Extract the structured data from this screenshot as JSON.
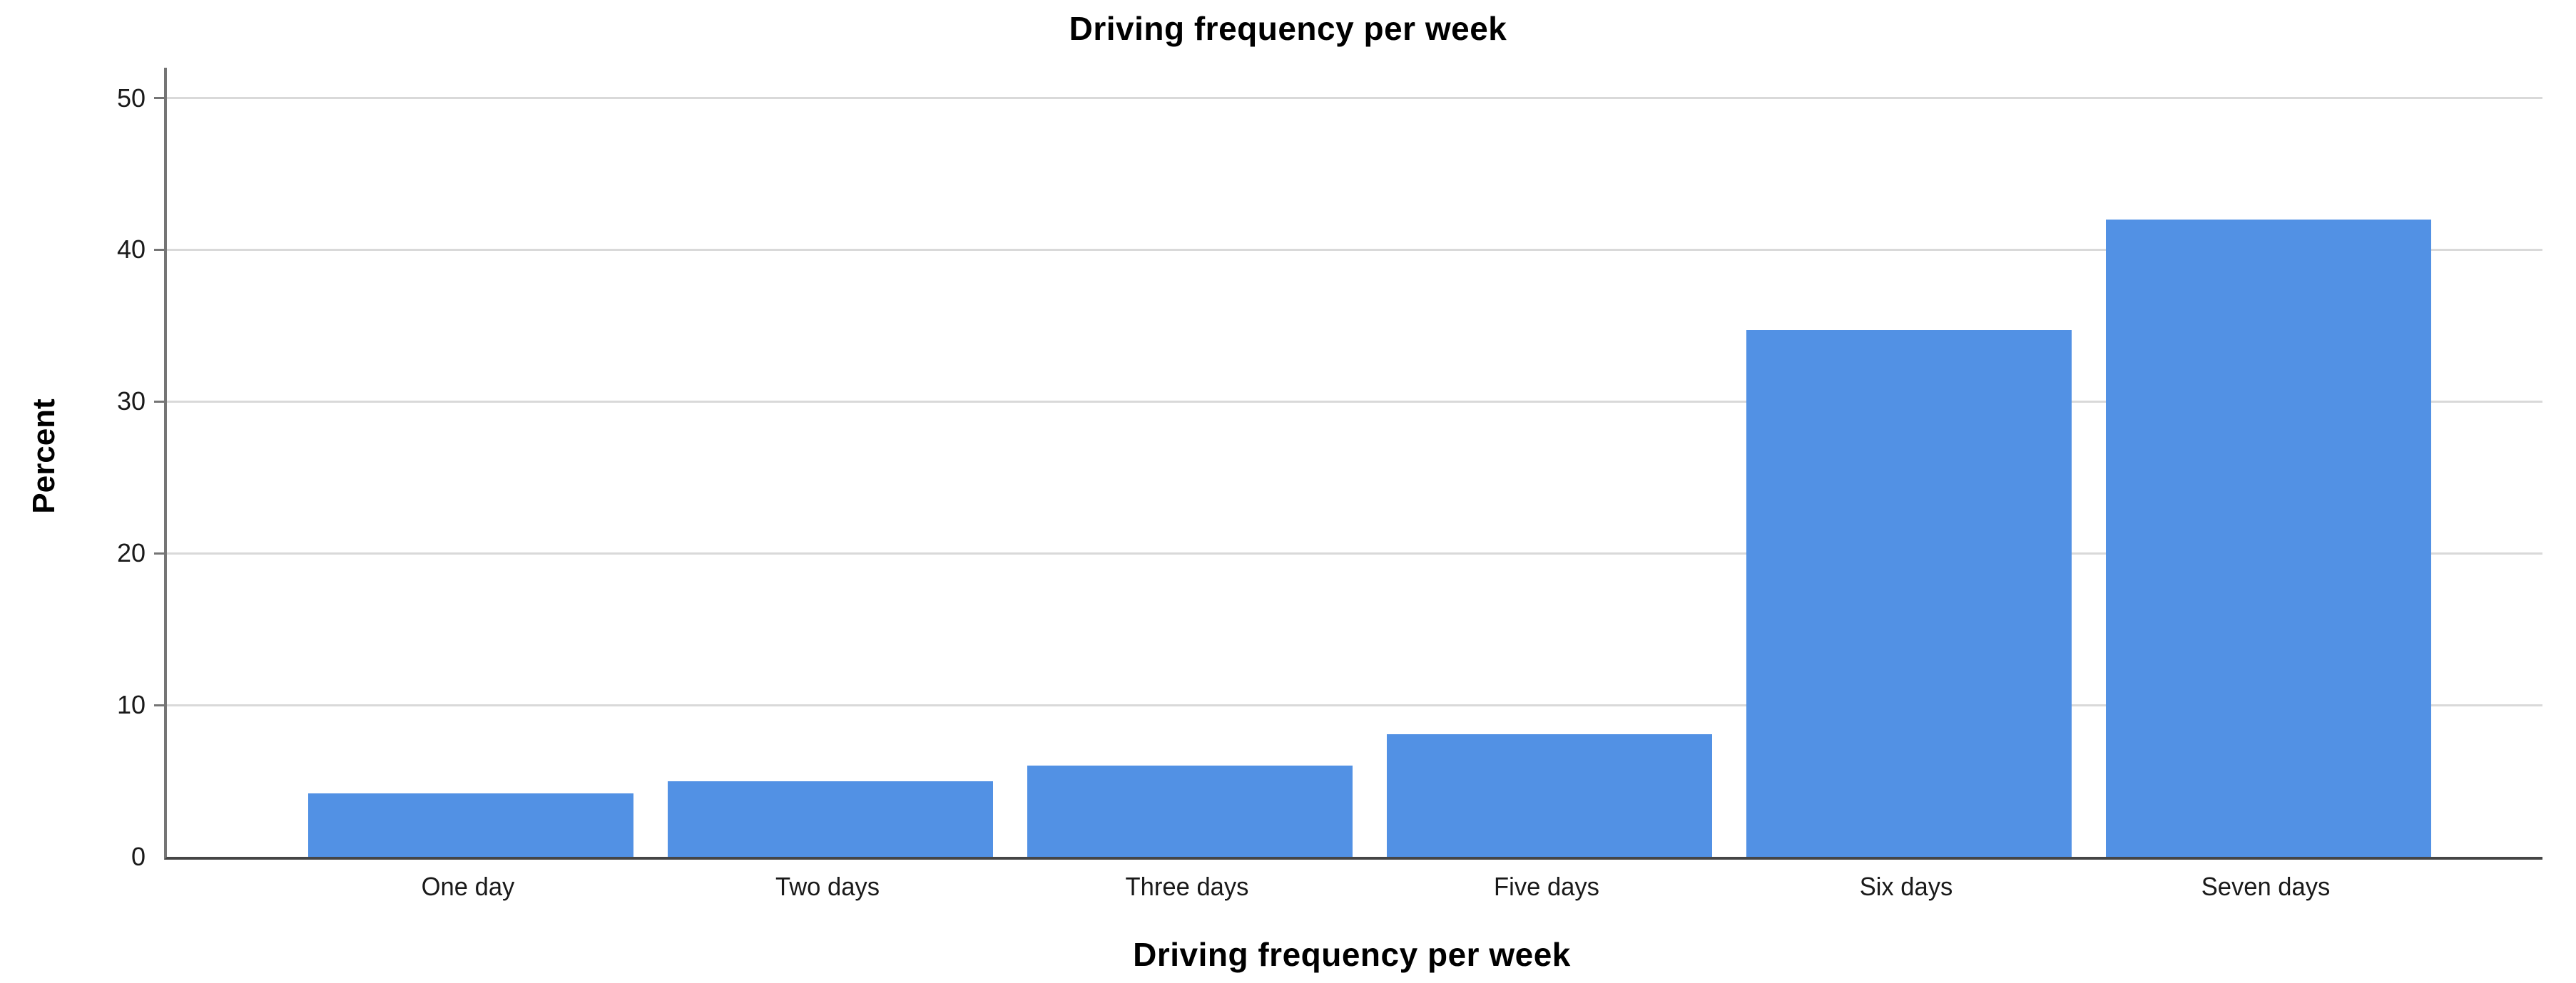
{
  "chart_data": {
    "type": "bar",
    "title": "Driving frequency per week",
    "xlabel": "Driving frequency per week",
    "ylabel": "Percent",
    "categories": [
      "One day",
      "Two days",
      "Three days",
      "Five days",
      "Six days",
      "Seven days"
    ],
    "values": [
      4.2,
      5.0,
      6.0,
      8.1,
      34.7,
      42.0
    ],
    "yticks": [
      0,
      10,
      20,
      30,
      40,
      50
    ],
    "ylim": [
      0,
      52
    ],
    "grid": true,
    "legend": "none",
    "colors": {
      "bar_fill": "#5291e4",
      "gridline": "#d9d9d9",
      "y_axis_line": "#757575",
      "x_axis_line": "#454545",
      "tick_text": "#1a1a1a",
      "title_text": "#000000",
      "background": "#ffffff"
    }
  }
}
